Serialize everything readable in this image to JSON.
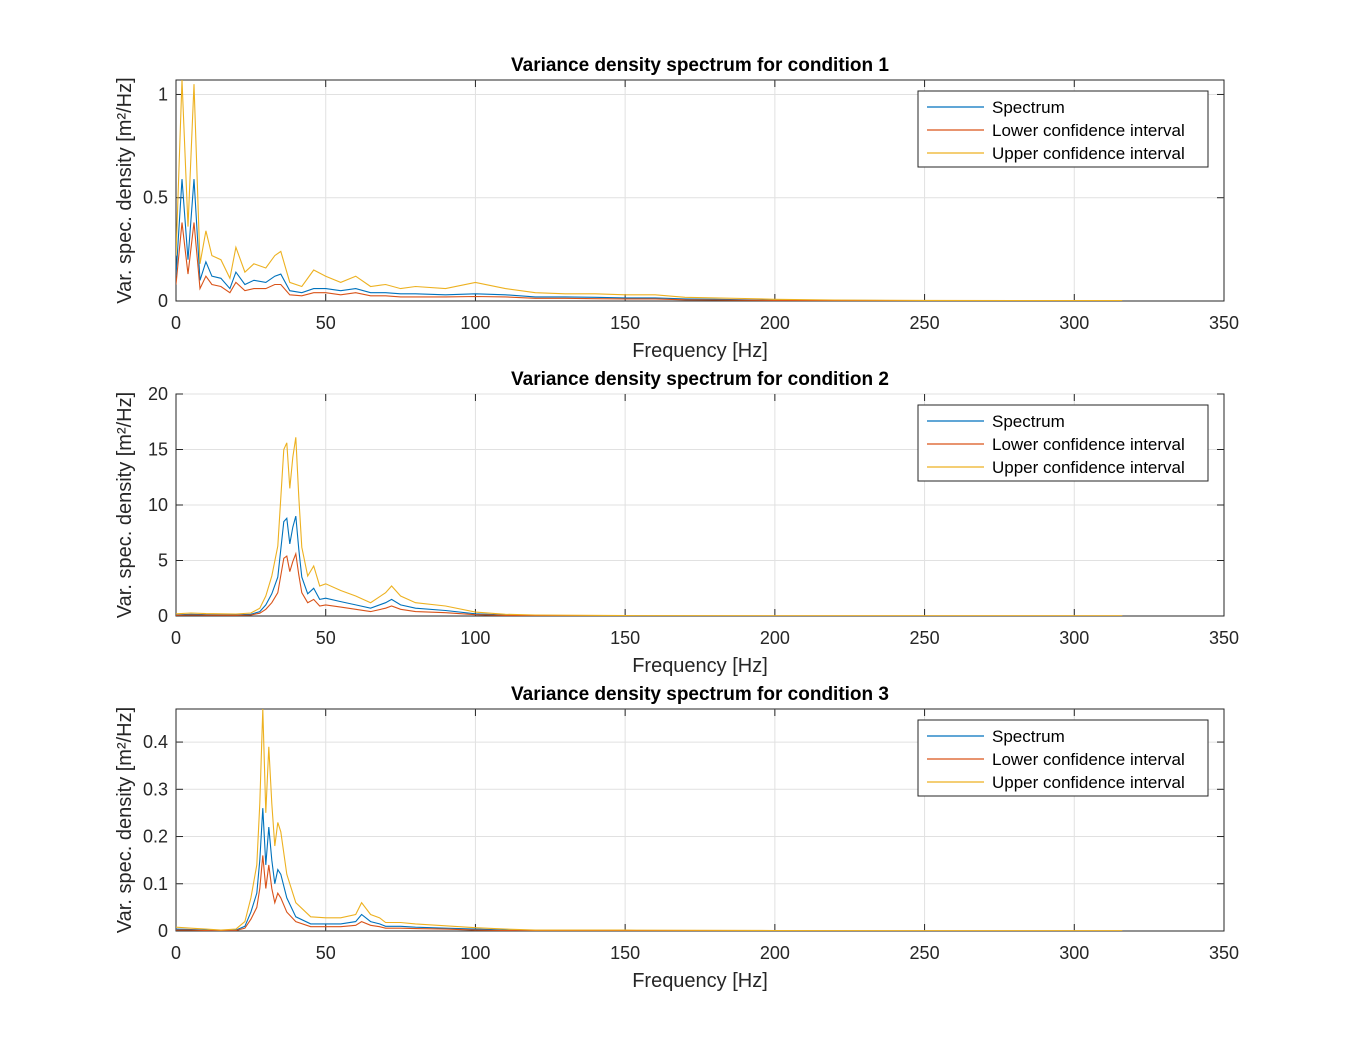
{
  "legend_labels": [
    "Spectrum",
    "Lower confidence interval",
    "Upper confidence interval"
  ],
  "colors": {
    "spectrum": "#0072BD",
    "lower": "#D95319",
    "upper": "#EDB120"
  },
  "chart_data": [
    {
      "type": "line",
      "title": "Variance density spectrum for condition 1",
      "xlabel": "Frequency [Hz]",
      "ylabel": "Var. spec. density [m²/Hz]",
      "xlim": [
        0,
        350
      ],
      "ylim": [
        0,
        1.07
      ],
      "xticks": [
        0,
        50,
        100,
        150,
        200,
        250,
        300,
        350
      ],
      "yticks": [
        0,
        0.5,
        1
      ],
      "grid": true,
      "legend_position": "top-right",
      "x": [
        0,
        2,
        4,
        6,
        8,
        10,
        12,
        15,
        18,
        20,
        23,
        26,
        30,
        33,
        35,
        38,
        42,
        46,
        50,
        55,
        60,
        65,
        70,
        75,
        80,
        90,
        100,
        110,
        120,
        130,
        140,
        150,
        160,
        170,
        180,
        190,
        200,
        220,
        250,
        280,
        316
      ],
      "series": [
        {
          "name": "Spectrum",
          "values": [
            0.12,
            0.59,
            0.2,
            0.59,
            0.1,
            0.19,
            0.12,
            0.11,
            0.06,
            0.14,
            0.08,
            0.1,
            0.09,
            0.12,
            0.13,
            0.05,
            0.04,
            0.06,
            0.06,
            0.05,
            0.06,
            0.04,
            0.04,
            0.035,
            0.035,
            0.03,
            0.035,
            0.03,
            0.02,
            0.02,
            0.018,
            0.015,
            0.015,
            0.01,
            0.008,
            0.006,
            0.004,
            0.003,
            0.002,
            0.001,
            0.001
          ]
        },
        {
          "name": "Lower confidence interval",
          "values": [
            0.08,
            0.38,
            0.13,
            0.38,
            0.06,
            0.12,
            0.08,
            0.07,
            0.04,
            0.09,
            0.05,
            0.06,
            0.06,
            0.08,
            0.08,
            0.03,
            0.025,
            0.04,
            0.04,
            0.03,
            0.04,
            0.025,
            0.025,
            0.02,
            0.02,
            0.02,
            0.022,
            0.02,
            0.013,
            0.013,
            0.011,
            0.01,
            0.01,
            0.006,
            0.005,
            0.004,
            0.003,
            0.002,
            0.001,
            0.001,
            0.0005
          ]
        },
        {
          "name": "Upper confidence interval",
          "values": [
            0.22,
            1.07,
            0.36,
            1.05,
            0.18,
            0.34,
            0.22,
            0.2,
            0.11,
            0.26,
            0.14,
            0.18,
            0.16,
            0.22,
            0.24,
            0.09,
            0.07,
            0.15,
            0.12,
            0.09,
            0.12,
            0.07,
            0.08,
            0.06,
            0.07,
            0.06,
            0.09,
            0.06,
            0.04,
            0.035,
            0.035,
            0.03,
            0.03,
            0.018,
            0.015,
            0.012,
            0.008,
            0.005,
            0.003,
            0.002,
            0.002
          ]
        }
      ]
    },
    {
      "type": "line",
      "title": "Variance density spectrum for condition 2",
      "xlabel": "Frequency [Hz]",
      "ylabel": "Var. spec. density [m²/Hz]",
      "xlim": [
        0,
        350
      ],
      "ylim": [
        0,
        20
      ],
      "xticks": [
        0,
        50,
        100,
        150,
        200,
        250,
        300,
        350
      ],
      "yticks": [
        0,
        5,
        10,
        15,
        20
      ],
      "grid": true,
      "legend_position": "top-right",
      "x": [
        0,
        5,
        10,
        20,
        25,
        28,
        30,
        32,
        34,
        36,
        37,
        38,
        39,
        40,
        41,
        42,
        44,
        46,
        48,
        50,
        55,
        60,
        65,
        70,
        72,
        75,
        80,
        90,
        100,
        110,
        120,
        150,
        200,
        250,
        316
      ],
      "series": [
        {
          "name": "Spectrum",
          "values": [
            0.1,
            0.15,
            0.12,
            0.1,
            0.15,
            0.4,
            1.0,
            2.0,
            3.5,
            8.5,
            8.8,
            6.5,
            8.0,
            9.0,
            6.0,
            3.5,
            2.0,
            2.5,
            1.5,
            1.6,
            1.3,
            1.0,
            0.7,
            1.2,
            1.5,
            1.0,
            0.7,
            0.5,
            0.2,
            0.08,
            0.05,
            0.02,
            0.01,
            0.01,
            0.01
          ]
        },
        {
          "name": "Lower confidence interval",
          "values": [
            0.06,
            0.09,
            0.07,
            0.06,
            0.09,
            0.25,
            0.6,
            1.2,
            2.1,
            5.2,
            5.4,
            4.0,
            4.9,
            5.6,
            3.7,
            2.1,
            1.2,
            1.5,
            0.9,
            1.0,
            0.8,
            0.6,
            0.4,
            0.7,
            0.9,
            0.6,
            0.4,
            0.3,
            0.12,
            0.05,
            0.03,
            0.01,
            0.006,
            0.006,
            0.006
          ]
        },
        {
          "name": "Upper confidence interval",
          "values": [
            0.2,
            0.27,
            0.22,
            0.18,
            0.27,
            0.7,
            1.8,
            3.6,
            6.3,
            15.0,
            15.6,
            11.5,
            14.3,
            16.1,
            10.7,
            6.2,
            3.6,
            4.5,
            2.7,
            2.9,
            2.3,
            1.8,
            1.2,
            2.1,
            2.7,
            1.8,
            1.2,
            0.9,
            0.35,
            0.15,
            0.09,
            0.04,
            0.02,
            0.02,
            0.02
          ]
        }
      ]
    },
    {
      "type": "line",
      "title": "Variance density spectrum for condition 3",
      "xlabel": "Frequency [Hz]",
      "ylabel": "Var. spec. density [m²/Hz]",
      "xlim": [
        0,
        350
      ],
      "ylim": [
        0,
        0.47
      ],
      "xticks": [
        0,
        50,
        100,
        150,
        200,
        250,
        300,
        350
      ],
      "yticks": [
        0,
        0.1,
        0.2,
        0.3,
        0.4
      ],
      "grid": true,
      "legend_position": "top-right",
      "x": [
        0,
        5,
        10,
        15,
        20,
        23,
        25,
        27,
        28,
        29,
        30,
        31,
        32,
        33,
        34,
        35,
        37,
        40,
        45,
        50,
        55,
        60,
        62,
        65,
        68,
        70,
        75,
        80,
        90,
        100,
        110,
        120,
        150,
        200,
        250,
        316
      ],
      "series": [
        {
          "name": "Spectrum",
          "values": [
            0.004,
            0.003,
            0.002,
            0.001,
            0.002,
            0.01,
            0.04,
            0.08,
            0.15,
            0.26,
            0.14,
            0.22,
            0.15,
            0.1,
            0.13,
            0.12,
            0.07,
            0.03,
            0.015,
            0.015,
            0.015,
            0.02,
            0.035,
            0.02,
            0.015,
            0.01,
            0.01,
            0.008,
            0.006,
            0.004,
            0.002,
            0.001,
            0.001,
            0.0005,
            0.0003,
            0.0003
          ]
        },
        {
          "name": "Lower confidence interval",
          "values": [
            0.002,
            0.002,
            0.001,
            0.0005,
            0.001,
            0.006,
            0.025,
            0.05,
            0.09,
            0.16,
            0.09,
            0.14,
            0.09,
            0.06,
            0.08,
            0.07,
            0.04,
            0.02,
            0.009,
            0.009,
            0.009,
            0.012,
            0.02,
            0.012,
            0.009,
            0.006,
            0.006,
            0.005,
            0.004,
            0.002,
            0.001,
            0.0005,
            0.0005,
            0.0003,
            0.0002,
            0.0002
          ]
        },
        {
          "name": "Upper confidence interval",
          "values": [
            0.008,
            0.006,
            0.004,
            0.002,
            0.004,
            0.02,
            0.07,
            0.14,
            0.27,
            0.47,
            0.25,
            0.39,
            0.27,
            0.18,
            0.23,
            0.21,
            0.12,
            0.06,
            0.03,
            0.028,
            0.028,
            0.035,
            0.06,
            0.035,
            0.028,
            0.018,
            0.018,
            0.015,
            0.011,
            0.007,
            0.004,
            0.002,
            0.002,
            0.001,
            0.0006,
            0.0006
          ]
        }
      ]
    }
  ]
}
